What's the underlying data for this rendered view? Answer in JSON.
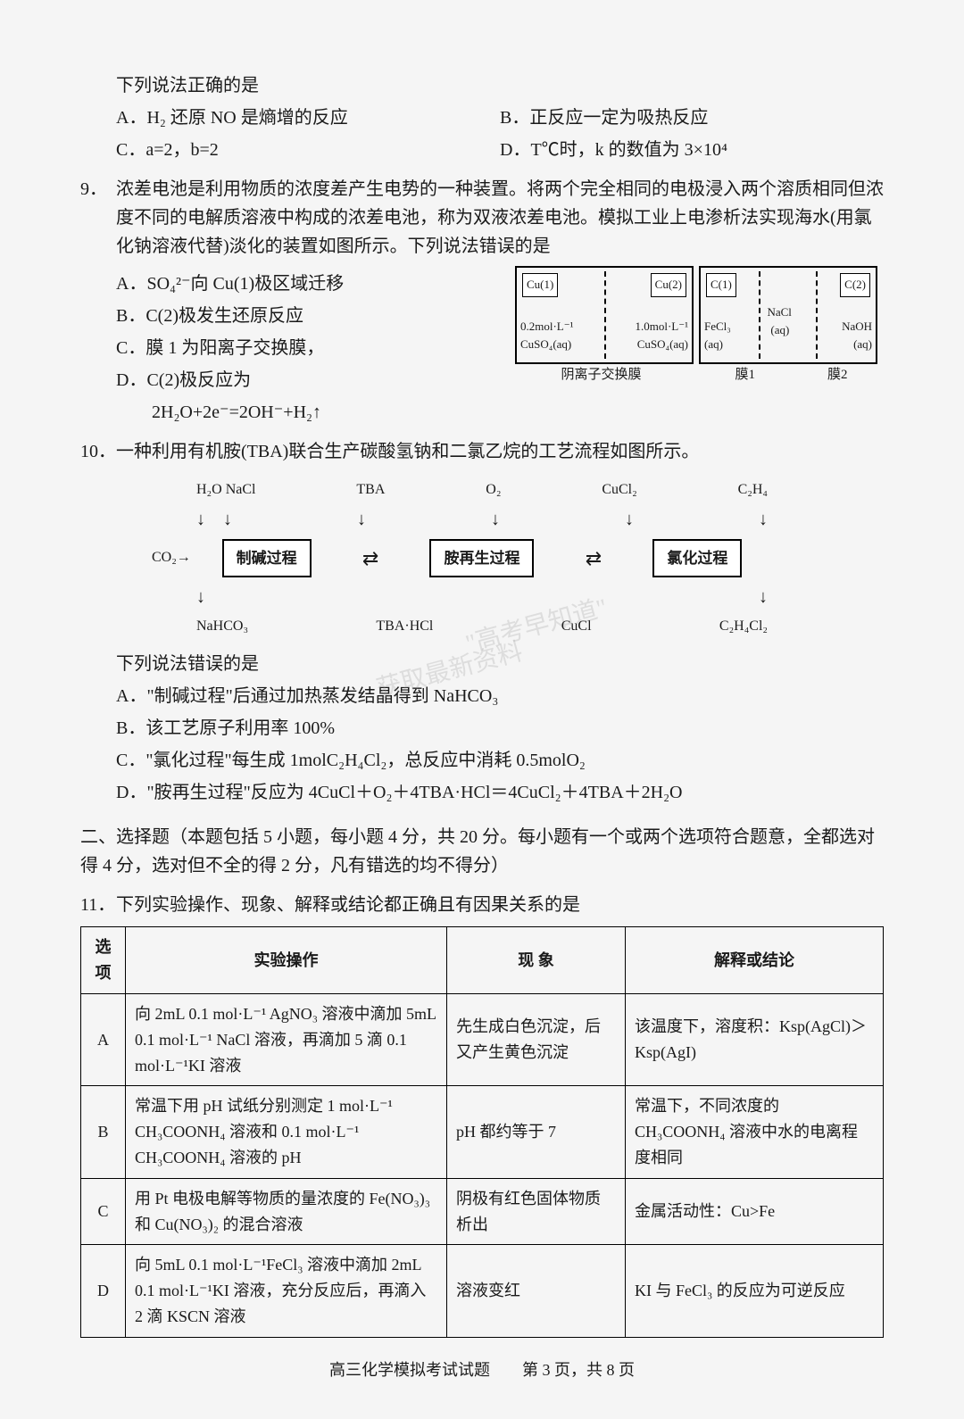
{
  "intro_line": "下列说法正确的是",
  "q8_options": {
    "A": "A．H₂ 还原 NO 是熵增的反应",
    "B": "B．正反应一定为吸热反应",
    "C": "C．a=2，b=2",
    "D": "D．T℃时，k 的数值为 3×10⁴"
  },
  "q9": {
    "num": "9．",
    "stem": "浓差电池是利用物质的浓度差产生电势的一种装置。将两个完全相同的电极浸入两个溶质相同但浓度不同的电解质溶液中构成的浓差电池，称为双液浓差电池。模拟工业上电渗析法实现海水(用氯化钠溶液代替)淡化的装置如图所示。下列说法错误的是",
    "A": "A．SO₄²⁻向 Cu(1)极区域迁移",
    "B": "B．C(2)极发生还原反应",
    "C": "C．膜 1 为阳离子交换膜，",
    "D": "D．C(2)极反应为",
    "D2": "2H₂O+2e⁻=2OH⁻+H₂↑",
    "diagram": {
      "cu1": "Cu(1)",
      "cu2": "Cu(2)",
      "c1": "C(1)",
      "c2": "C(2)",
      "sol_left_a": "0.2mol·L⁻¹",
      "sol_left_b": "1.0mol·L⁻¹",
      "sol_left_c": "CuSO₄(aq)",
      "sol_left_d": "CuSO₄(aq)",
      "sol_r1": "FeCl₃",
      "sol_r1b": "(aq)",
      "sol_r2": "NaCl",
      "sol_r2b": "(aq)",
      "sol_r3": "NaOH",
      "sol_r3b": "(aq)",
      "label_left": "阴离子交换膜",
      "label_m1": "膜1",
      "label_m2": "膜2"
    }
  },
  "q10": {
    "num": "10．",
    "stem": "一种利用有机胺(TBA)联合生产碳酸氢钠和二氯乙烷的工艺流程如图所示。",
    "flow": {
      "top": [
        "H₂O  NaCl",
        "TBA",
        "O₂",
        "CuCl₂",
        "C₂H₄"
      ],
      "co2": "CO₂→",
      "box1": "制碱过程",
      "box2": "胺再生过程",
      "box3": "氯化过程",
      "bottom": [
        "NaHCO₃",
        "TBA·HCl",
        "CuCl",
        "C₂H₄Cl₂"
      ]
    },
    "sub": "下列说法错误的是",
    "A": "A．\"制碱过程\"后通过加热蒸发结晶得到 NaHCO₃",
    "B": "B．该工艺原子利用率 100%",
    "C": "C．\"氯化过程\"每生成 1molC₂H₄Cl₂，总反应中消耗 0.5molO₂",
    "D": "D．\"胺再生过程\"反应为 4CuCl＋O₂＋4TBA·HCl＝4CuCl₂＋4TBA＋2H₂O"
  },
  "section2": "二、选择题（本题包括 5 小题，每小题 4 分，共 20 分。每小题有一个或两个选项符合题意，全都选对得 4 分，选对但不全的得 2 分，凡有错选的均不得分）",
  "q11": {
    "num": "11．",
    "stem": "下列实验操作、现象、解释或结论都正确且有因果关系的是",
    "headers": [
      "选项",
      "实验操作",
      "现 象",
      "解释或结论"
    ],
    "rows": [
      {
        "opt": "A",
        "op": "向 2mL 0.1 mol·L⁻¹ AgNO₃ 溶液中滴加 5mL 0.1 mol·L⁻¹ NaCl 溶液，再滴加 5 滴 0.1 mol·L⁻¹KI 溶液",
        "ph": "先生成白色沉淀，后又产生黄色沉淀",
        "ex": "该温度下，溶度积：Ksp(AgCl)＞Ksp(AgI)"
      },
      {
        "opt": "B",
        "op": "常温下用 pH 试纸分别测定 1 mol·L⁻¹ CH₃COONH₄ 溶液和 0.1 mol·L⁻¹ CH₃COONH₄ 溶液的 pH",
        "ph": "pH 都约等于 7",
        "ex": "常温下，不同浓度的 CH₃COONH₄ 溶液中水的电离程度相同"
      },
      {
        "opt": "C",
        "op": "用 Pt 电极电解等物质的量浓度的 Fe(NO₃)₃ 和 Cu(NO₃)₂ 的混合溶液",
        "ph": "阴极有红色固体物质析出",
        "ex": "金属活动性：Cu>Fe"
      },
      {
        "opt": "D",
        "op": "向 5mL 0.1 mol·L⁻¹FeCl₃ 溶液中滴加 2mL 0.1 mol·L⁻¹KI 溶液，充分反应后，再滴入 2 滴 KSCN 溶液",
        "ph": "溶液变红",
        "ex": "KI 与 FeCl₃ 的反应为可逆反应"
      }
    ]
  },
  "footer": "高三化学模拟考试试题　　第 3 页，共 8 页",
  "watermarks": [
    "\"高考早知道\"",
    "获取最新资料"
  ]
}
